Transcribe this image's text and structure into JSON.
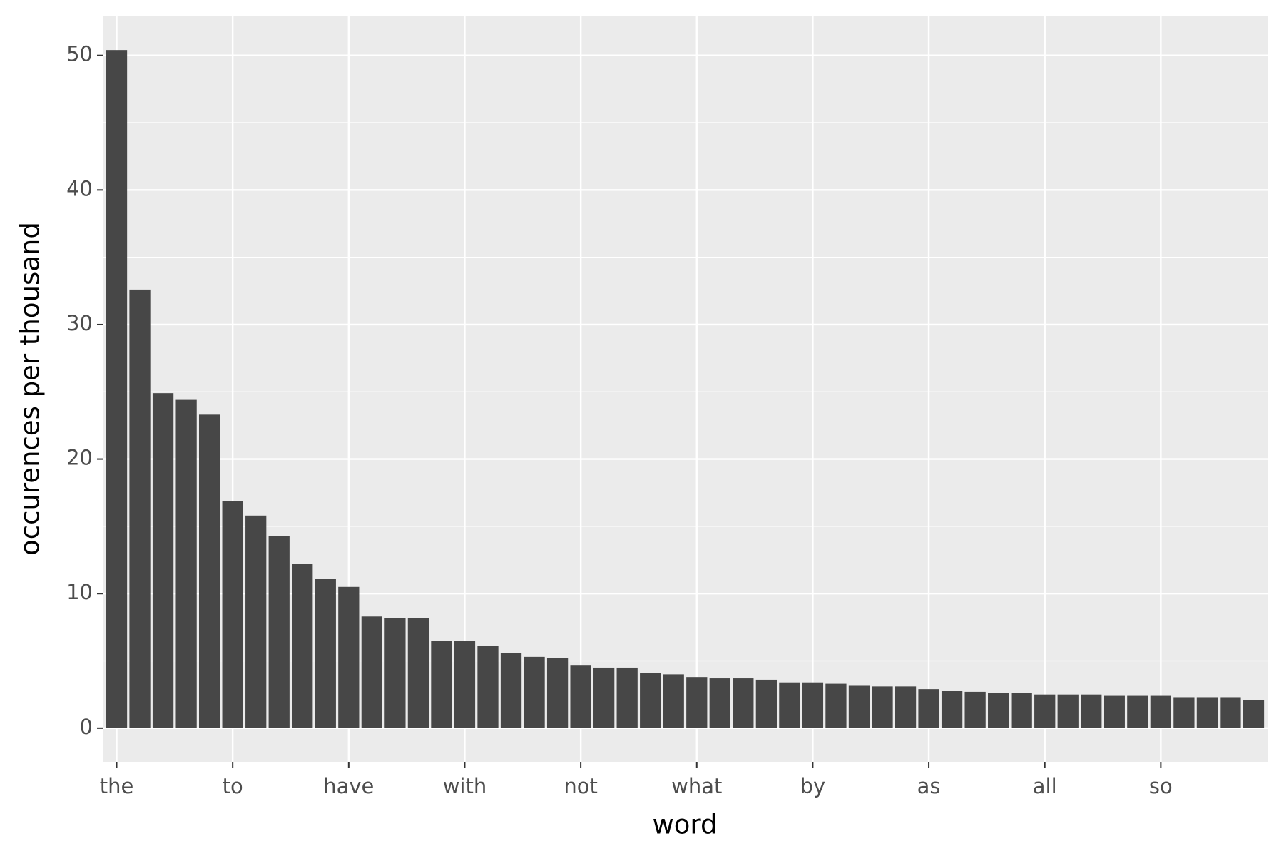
{
  "chart_data": {
    "type": "bar",
    "x_label": "word",
    "y_label": "occurences per thousand",
    "categories": [
      "the",
      null,
      null,
      null,
      null,
      "to",
      null,
      null,
      null,
      null,
      "have",
      null,
      null,
      null,
      null,
      "with",
      null,
      null,
      null,
      null,
      "not",
      null,
      null,
      null,
      null,
      "what",
      null,
      null,
      null,
      null,
      "by",
      null,
      null,
      null,
      null,
      "as",
      null,
      null,
      null,
      null,
      "all",
      null,
      null,
      null,
      null,
      "so",
      null,
      null,
      null,
      null
    ],
    "values": [
      50.4,
      32.6,
      24.9,
      24.4,
      23.3,
      16.9,
      15.8,
      14.3,
      12.2,
      11.1,
      10.5,
      8.3,
      8.2,
      8.2,
      6.5,
      6.5,
      6.1,
      5.6,
      5.3,
      5.2,
      4.7,
      4.5,
      4.5,
      4.1,
      4.0,
      3.8,
      3.7,
      3.7,
      3.6,
      3.4,
      3.4,
      3.3,
      3.2,
      3.1,
      3.1,
      2.9,
      2.8,
      2.7,
      2.6,
      2.6,
      2.5,
      2.5,
      2.5,
      2.4,
      2.4,
      2.4,
      2.3,
      2.3,
      2.3,
      2.1
    ],
    "color": "#474747",
    "ylim": [
      -2.5,
      52.9
    ],
    "yticks": [
      0,
      10,
      20,
      30,
      40,
      50
    ],
    "grid": true
  }
}
